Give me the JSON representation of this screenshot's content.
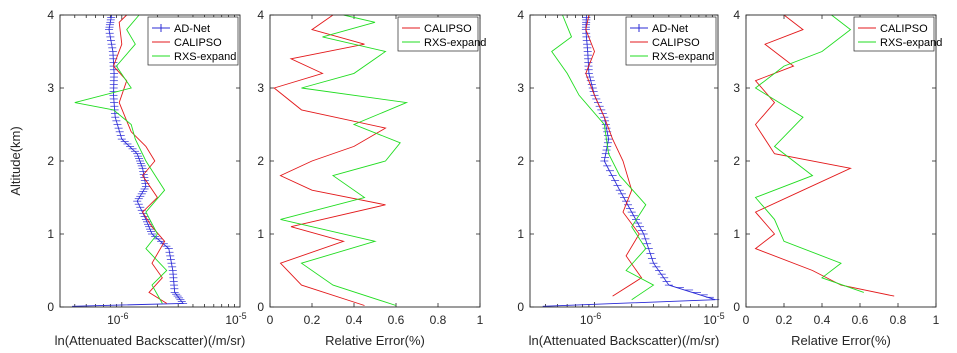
{
  "chart_data": [
    {
      "type": "line",
      "panel": "left-profile",
      "xscale": "log",
      "xlim": [
        3e-07,
        1e-05
      ],
      "ylim": [
        0,
        4
      ],
      "ylabel": "Altitude(km)",
      "xlabel": "ln(Attenuated Backscatter)(/m/sr)",
      "yticks": [
        "0",
        "1",
        "2",
        "3",
        "4"
      ],
      "xticks": [
        {
          "base": "10",
          "exp": "-6",
          "value": 1e-06
        },
        {
          "base": "10",
          "exp": "-5",
          "value": 1e-05
        }
      ],
      "legend": {
        "placement": "top-right",
        "entries": [
          "AD-Net",
          "CALIPSO",
          "RXS-expand"
        ]
      },
      "colors": {
        "AD-Net": "#2b2bd6",
        "CALIPSO": "#e31a1c",
        "RXS-expand": "#22dd22"
      },
      "series": [
        {
          "name": "AD-Net",
          "error_bars": true,
          "points": [
            [
              3.8e-07,
              0.01
            ],
            [
              3.3e-06,
              0.05
            ],
            [
              2.8e-06,
              0.2
            ],
            [
              2.7e-06,
              0.5
            ],
            [
              2.5e-06,
              0.8
            ],
            [
              1.8e-06,
              1.0
            ],
            [
              1.6e-06,
              1.2
            ],
            [
              1.35e-06,
              1.45
            ],
            [
              1.6e-06,
              1.65
            ],
            [
              1.5e-06,
              1.9
            ],
            [
              1.35e-06,
              2.1
            ],
            [
              1e-06,
              2.3
            ],
            [
              8.8e-07,
              2.6
            ],
            [
              8.5e-07,
              2.9
            ],
            [
              8.6e-07,
              3.2
            ],
            [
              8.4e-07,
              3.5
            ],
            [
              7.8e-07,
              3.8
            ],
            [
              8.2e-07,
              4.0
            ]
          ]
        },
        {
          "name": "CALIPSO",
          "points": [
            [
              2.4e-06,
              0.05
            ],
            [
              1.7e-06,
              0.2
            ],
            [
              2.2e-06,
              0.4
            ],
            [
              1.8e-06,
              0.6
            ],
            [
              2.3e-06,
              0.9
            ],
            [
              1.8e-06,
              1.1
            ],
            [
              1.5e-06,
              1.3
            ],
            [
              2e-06,
              1.5
            ],
            [
              1.5e-06,
              1.8
            ],
            [
              1.9e-06,
              2.0
            ],
            [
              1.6e-06,
              2.2
            ],
            [
              1.2e-06,
              2.4
            ],
            [
              9.5e-07,
              2.8
            ],
            [
              1.1e-06,
              3.1
            ],
            [
              8.5e-07,
              3.3
            ],
            [
              1e-06,
              3.6
            ],
            [
              9.5e-07,
              3.9
            ],
            [
              1.1e-06,
              4.0
            ]
          ]
        },
        {
          "name": "RXS-expand",
          "points": [
            [
              2.2e-06,
              0.05
            ],
            [
              1.8e-06,
              0.3
            ],
            [
              2.4e-06,
              0.5
            ],
            [
              1.6e-06,
              0.8
            ],
            [
              2e-06,
              1.0
            ],
            [
              1.6e-06,
              1.3
            ],
            [
              2.3e-06,
              1.6
            ],
            [
              1.6e-06,
              2.0
            ],
            [
              1.3e-06,
              2.3
            ],
            [
              1.2e-06,
              2.5
            ],
            [
              8.5e-07,
              2.7
            ],
            [
              4e-07,
              2.8
            ],
            [
              1.2e-06,
              3.0
            ],
            [
              9e-07,
              3.3
            ],
            [
              1.3e-06,
              3.6
            ],
            [
              1.1e-06,
              3.8
            ],
            [
              1.4e-06,
              4.0
            ]
          ]
        }
      ]
    },
    {
      "type": "line",
      "panel": "left-error",
      "xlim": [
        0,
        1
      ],
      "ylim": [
        0,
        4
      ],
      "xlabel": "Relative Error(%)",
      "yticks": [
        "0",
        "1",
        "2",
        "3",
        "4"
      ],
      "xticks": [
        "0",
        "0.2",
        "0.4",
        "0.6",
        "0.8",
        "1"
      ],
      "legend": {
        "placement": "top-right",
        "entries": [
          "CALIPSO",
          "RXS-expand"
        ]
      },
      "colors": {
        "CALIPSO": "#e31a1c",
        "RXS-expand": "#22dd22"
      },
      "series": [
        {
          "name": "CALIPSO",
          "points": [
            [
              0.45,
              0.02
            ],
            [
              0.15,
              0.3
            ],
            [
              0.05,
              0.6
            ],
            [
              0.35,
              0.9
            ],
            [
              0.1,
              1.1
            ],
            [
              0.55,
              1.4
            ],
            [
              0.2,
              1.6
            ],
            [
              0.05,
              1.8
            ],
            [
              0.2,
              2.0
            ],
            [
              0.4,
              2.2
            ],
            [
              0.55,
              2.45
            ],
            [
              0.15,
              2.7
            ],
            [
              0.02,
              3.0
            ],
            [
              0.25,
              3.2
            ],
            [
              0.1,
              3.4
            ],
            [
              0.45,
              3.6
            ],
            [
              0.2,
              3.8
            ],
            [
              0.3,
              4.0
            ]
          ]
        },
        {
          "name": "RXS-expand",
          "points": [
            [
              0.6,
              0.02
            ],
            [
              0.3,
              0.3
            ],
            [
              0.15,
              0.6
            ],
            [
              0.5,
              0.9
            ],
            [
              0.05,
              1.2
            ],
            [
              0.45,
              1.5
            ],
            [
              0.3,
              1.8
            ],
            [
              0.55,
              2.0
            ],
            [
              0.62,
              2.25
            ],
            [
              0.4,
              2.5
            ],
            [
              0.65,
              2.8
            ],
            [
              0.15,
              3.0
            ],
            [
              0.4,
              3.2
            ],
            [
              0.55,
              3.5
            ],
            [
              0.25,
              3.7
            ],
            [
              0.5,
              3.9
            ],
            [
              0.35,
              4.0
            ]
          ]
        }
      ]
    },
    {
      "type": "line",
      "panel": "right-profile",
      "xscale": "log",
      "xlim": [
        3e-07,
        1e-05
      ],
      "ylim": [
        0,
        4
      ],
      "xlabel": "ln(Attenuated Backscatter)(/m/sr)",
      "yticks": [
        "0",
        "1",
        "2",
        "3",
        "4"
      ],
      "xticks": [
        {
          "base": "10",
          "exp": "-6",
          "value": 1e-06
        },
        {
          "base": "10",
          "exp": "-5",
          "value": 1e-05
        }
      ],
      "legend": {
        "placement": "top-right",
        "entries": [
          "AD-Net",
          "CALIPSO",
          "RXS-expand"
        ]
      },
      "colors": {
        "AD-Net": "#2b2bd6",
        "CALIPSO": "#e31a1c",
        "RXS-expand": "#22dd22"
      },
      "series": [
        {
          "name": "AD-Net",
          "error_bars": true,
          "points": [
            [
              3.8e-07,
              0.01
            ],
            [
              9.5e-06,
              0.1
            ],
            [
              4e-06,
              0.3
            ],
            [
              3e-06,
              0.6
            ],
            [
              2.5e-06,
              1.0
            ],
            [
              2e-06,
              1.3
            ],
            [
              1.6e-06,
              1.6
            ],
            [
              1.2e-06,
              2.0
            ],
            [
              1.3e-06,
              2.3
            ],
            [
              1.2e-06,
              2.6
            ],
            [
              1e-06,
              2.9
            ],
            [
              9e-07,
              3.2
            ],
            [
              8.8e-07,
              3.5
            ],
            [
              8.5e-07,
              3.8
            ],
            [
              8.6e-07,
              4.0
            ]
          ]
        },
        {
          "name": "CALIPSO",
          "points": [
            [
              1.4e-06,
              0.15
            ],
            [
              2.4e-06,
              0.4
            ],
            [
              1.8e-06,
              0.7
            ],
            [
              2.3e-06,
              1.0
            ],
            [
              1.7e-06,
              1.3
            ],
            [
              2e-06,
              1.6
            ],
            [
              1.7e-06,
              2.0
            ],
            [
              1.4e-06,
              2.3
            ],
            [
              1.2e-06,
              2.6
            ],
            [
              1e-06,
              2.9
            ],
            [
              8.5e-07,
              3.2
            ],
            [
              1e-06,
              3.5
            ],
            [
              8.5e-07,
              3.8
            ],
            [
              9e-07,
              4.0
            ]
          ]
        },
        {
          "name": "RXS-expand",
          "points": [
            [
              2e-06,
              0.1
            ],
            [
              3e-06,
              0.3
            ],
            [
              1.8e-06,
              0.5
            ],
            [
              2.6e-06,
              0.8
            ],
            [
              2e-06,
              1.1
            ],
            [
              2.6e-06,
              1.4
            ],
            [
              1.6e-06,
              1.8
            ],
            [
              1.3e-06,
              2.1
            ],
            [
              1.2e-06,
              2.5
            ],
            [
              7.5e-07,
              2.9
            ],
            [
              6e-07,
              3.2
            ],
            [
              4.5e-07,
              3.5
            ],
            [
              6.5e-07,
              3.7
            ],
            [
              5.5e-07,
              4.0
            ]
          ]
        }
      ]
    },
    {
      "type": "line",
      "panel": "right-error",
      "xlim": [
        0,
        1
      ],
      "ylim": [
        0,
        4
      ],
      "xlabel": "Relative Error(%)",
      "yticks": [
        "0",
        "1",
        "2",
        "3",
        "4"
      ],
      "xticks": [
        "0",
        "0.2",
        "0.4",
        "0.6",
        "0.8",
        "1"
      ],
      "legend": {
        "placement": "top-right",
        "entries": [
          "CALIPSO",
          "RXS-expand"
        ]
      },
      "colors": {
        "CALIPSO": "#e31a1c",
        "RXS-expand": "#22dd22"
      },
      "series": [
        {
          "name": "CALIPSO",
          "points": [
            [
              0.78,
              0.15
            ],
            [
              0.5,
              0.3
            ],
            [
              0.35,
              0.5
            ],
            [
              0.05,
              0.8
            ],
            [
              0.15,
              1.0
            ],
            [
              0.05,
              1.3
            ],
            [
              0.3,
              1.6
            ],
            [
              0.55,
              1.9
            ],
            [
              0.15,
              2.1
            ],
            [
              0.05,
              2.5
            ],
            [
              0.15,
              2.8
            ],
            [
              0.05,
              3.1
            ],
            [
              0.25,
              3.3
            ],
            [
              0.1,
              3.6
            ],
            [
              0.3,
              3.8
            ],
            [
              0.2,
              4.0
            ]
          ]
        },
        {
          "name": "RXS-expand",
          "points": [
            [
              0.62,
              0.2
            ],
            [
              0.4,
              0.4
            ],
            [
              0.5,
              0.6
            ],
            [
              0.2,
              0.9
            ],
            [
              0.15,
              1.2
            ],
            [
              0.05,
              1.5
            ],
            [
              0.35,
              1.8
            ],
            [
              0.15,
              2.2
            ],
            [
              0.3,
              2.6
            ],
            [
              0.05,
              3.0
            ],
            [
              0.2,
              3.3
            ],
            [
              0.4,
              3.5
            ],
            [
              0.55,
              3.8
            ],
            [
              0.45,
              4.0
            ]
          ]
        }
      ]
    }
  ]
}
